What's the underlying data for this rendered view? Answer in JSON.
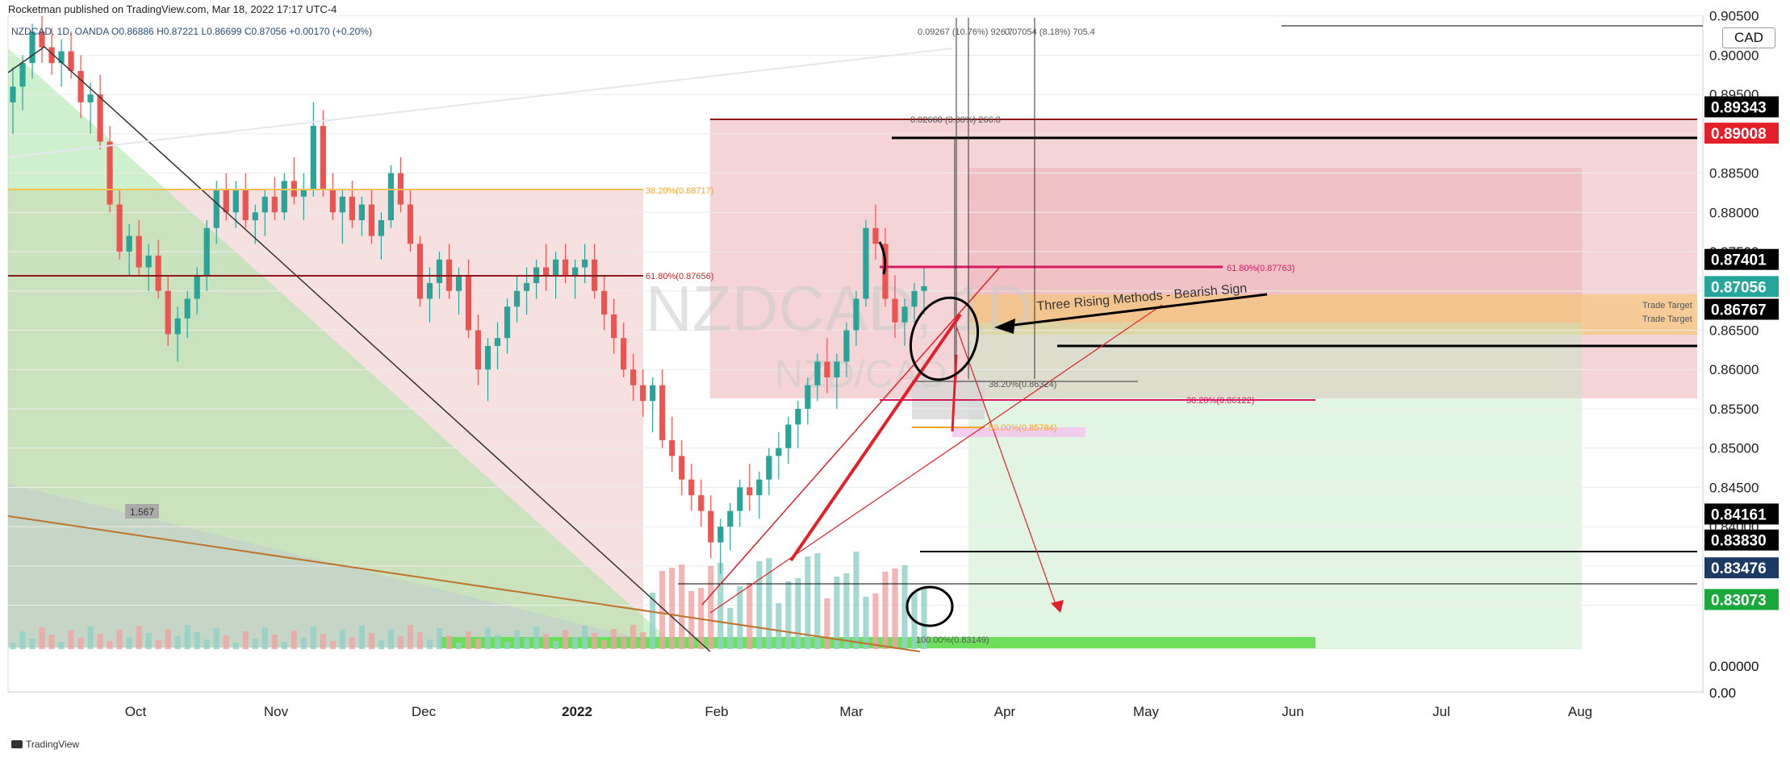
{
  "header": {
    "published": "Rocketman published on TradingView.com, Mar 18, 2022 17:17 UTC-4",
    "symbol_line": "NZDCAD, 1D, OANDA  O0.86886 H0.87221 L0.86699 C0.87056 +0.00170 (+0.20%)"
  },
  "currency_button": "CAD",
  "footer": {
    "brand": "TradingView"
  },
  "chart_data": {
    "type": "candlestick",
    "title": "",
    "watermark": [
      "NZDCAD, 1D",
      "NZD/CAD"
    ],
    "ylim": [
      0.82,
      0.906
    ],
    "y_ticks": [
      "0.90500",
      "0.90000",
      "0.89500",
      "0.89000",
      "0.88500",
      "0.88000",
      "0.87500",
      "0.87000",
      "0.86500",
      "0.86000",
      "0.85500",
      "0.85000",
      "0.84500",
      "0.84000",
      "0.83500",
      "0.83000"
    ],
    "x_ticks": [
      "Oct",
      "Nov",
      "Dec",
      "2022",
      "Feb",
      "Mar",
      "Apr",
      "May",
      "Jun",
      "Jul",
      "Aug"
    ],
    "price_labels": [
      {
        "value": "0.89343",
        "bg": "#000000",
        "fg": "#ffffff"
      },
      {
        "value": "0.89008",
        "bg": "#e3202a",
        "fg": "#ffffff"
      },
      {
        "value": "0.87401",
        "bg": "#000000",
        "fg": "#ffffff"
      },
      {
        "value": "0.87056",
        "bg": "#26a69a",
        "fg": "#ffffff"
      },
      {
        "value": "0.86767",
        "bg": "#000000",
        "fg": "#ffffff"
      },
      {
        "value": "0.84161",
        "bg": "#000000",
        "fg": "#ffffff"
      },
      {
        "value": "0.83830",
        "bg": "#000000",
        "fg": "#ffffff"
      },
      {
        "value": "0.83476",
        "bg": "#1c3a66",
        "fg": "#ffffff"
      },
      {
        "value": "0.83073",
        "bg": "#1aa83a",
        "fg": "#ffffff"
      }
    ],
    "volume_axis": [
      "0.00000",
      "0.00"
    ],
    "annotations": [
      {
        "text": "Three Rising Methods - Bearish Sign"
      },
      {
        "text": "Trade Target"
      },
      {
        "text": "Trade Target"
      },
      {
        "text": "38.20%(0.88717)"
      },
      {
        "text": "61.80%(0.87656)"
      },
      {
        "text": "61.80%(0.87763)"
      },
      {
        "text": "38.20%(0.86324)"
      },
      {
        "text": "38.20%(0.86122)"
      },
      {
        "text": "50.00%(0.85784)"
      },
      {
        "text": "0.02668 (3.08%) 266.8"
      },
      {
        "text": "0.09267 (10.76%) 926.7"
      },
      {
        "text": "0.07054 (8.18%) 705.4"
      },
      {
        "text": "1.567"
      },
      {
        "text": "100.00%(0.83149)"
      }
    ],
    "colors": {
      "up": "#26a69a",
      "down": "#ef5350",
      "fib_orange": "#f5a623",
      "fib_red": "#d81b60"
    },
    "candles": [
      [
        0.894,
        0.8985,
        0.89,
        0.896
      ],
      [
        0.896,
        0.9,
        0.893,
        0.899
      ],
      [
        0.899,
        0.904,
        0.897,
        0.903
      ],
      [
        0.903,
        0.905,
        0.899,
        0.901
      ],
      [
        0.901,
        0.9035,
        0.8975,
        0.899
      ],
      [
        0.899,
        0.902,
        0.896,
        0.9005
      ],
      [
        0.9005,
        0.903,
        0.897,
        0.898
      ],
      [
        0.898,
        0.9,
        0.892,
        0.894
      ],
      [
        0.894,
        0.8965,
        0.89,
        0.895
      ],
      [
        0.895,
        0.8975,
        0.888,
        0.889
      ],
      [
        0.889,
        0.891,
        0.88,
        0.881
      ],
      [
        0.881,
        0.883,
        0.874,
        0.875
      ],
      [
        0.875,
        0.8785,
        0.872,
        0.877
      ],
      [
        0.877,
        0.879,
        0.872,
        0.873
      ],
      [
        0.873,
        0.876,
        0.87,
        0.8745
      ],
      [
        0.8745,
        0.8765,
        0.869,
        0.87
      ],
      [
        0.87,
        0.872,
        0.863,
        0.8645
      ],
      [
        0.8645,
        0.868,
        0.861,
        0.8665
      ],
      [
        0.8665,
        0.87,
        0.864,
        0.869
      ],
      [
        0.869,
        0.873,
        0.867,
        0.872
      ],
      [
        0.872,
        0.879,
        0.87,
        0.878
      ],
      [
        0.878,
        0.884,
        0.876,
        0.883
      ],
      [
        0.883,
        0.885,
        0.879,
        0.88
      ],
      [
        0.88,
        0.884,
        0.878,
        0.883
      ],
      [
        0.883,
        0.885,
        0.878,
        0.879
      ],
      [
        0.879,
        0.881,
        0.876,
        0.88
      ],
      [
        0.88,
        0.883,
        0.877,
        0.882
      ],
      [
        0.882,
        0.8845,
        0.879,
        0.88
      ],
      [
        0.88,
        0.885,
        0.879,
        0.884
      ],
      [
        0.884,
        0.887,
        0.881,
        0.882
      ],
      [
        0.882,
        0.885,
        0.879,
        0.883
      ],
      [
        0.883,
        0.894,
        0.882,
        0.891
      ],
      [
        0.891,
        0.893,
        0.882,
        0.883
      ],
      [
        0.883,
        0.885,
        0.879,
        0.88
      ],
      [
        0.88,
        0.883,
        0.876,
        0.882
      ],
      [
        0.882,
        0.884,
        0.878,
        0.879
      ],
      [
        0.879,
        0.882,
        0.877,
        0.881
      ],
      [
        0.881,
        0.883,
        0.876,
        0.877
      ],
      [
        0.877,
        0.88,
        0.874,
        0.879
      ],
      [
        0.879,
        0.886,
        0.878,
        0.885
      ],
      [
        0.885,
        0.887,
        0.88,
        0.881
      ],
      [
        0.881,
        0.883,
        0.875,
        0.876
      ],
      [
        0.876,
        0.877,
        0.868,
        0.869
      ],
      [
        0.869,
        0.873,
        0.866,
        0.871
      ],
      [
        0.871,
        0.875,
        0.869,
        0.874
      ],
      [
        0.874,
        0.876,
        0.869,
        0.87
      ],
      [
        0.87,
        0.873,
        0.867,
        0.872
      ],
      [
        0.872,
        0.874,
        0.864,
        0.865
      ],
      [
        0.865,
        0.867,
        0.858,
        0.86
      ],
      [
        0.86,
        0.864,
        0.856,
        0.863
      ],
      [
        0.863,
        0.866,
        0.86,
        0.864
      ],
      [
        0.864,
        0.869,
        0.862,
        0.868
      ],
      [
        0.868,
        0.872,
        0.866,
        0.87
      ],
      [
        0.87,
        0.873,
        0.867,
        0.871
      ],
      [
        0.871,
        0.874,
        0.869,
        0.873
      ],
      [
        0.873,
        0.876,
        0.87,
        0.872
      ],
      [
        0.872,
        0.875,
        0.869,
        0.874
      ],
      [
        0.874,
        0.876,
        0.871,
        0.872
      ],
      [
        0.872,
        0.874,
        0.869,
        0.873
      ],
      [
        0.873,
        0.876,
        0.871,
        0.874
      ],
      [
        0.874,
        0.876,
        0.869,
        0.87
      ],
      [
        0.87,
        0.872,
        0.865,
        0.867
      ],
      [
        0.867,
        0.869,
        0.862,
        0.864
      ],
      [
        0.864,
        0.866,
        0.859,
        0.86
      ],
      [
        0.86,
        0.862,
        0.856,
        0.858
      ],
      [
        0.858,
        0.86,
        0.854,
        0.856
      ],
      [
        0.856,
        0.859,
        0.852,
        0.858
      ],
      [
        0.858,
        0.86,
        0.85,
        0.851
      ],
      [
        0.851,
        0.854,
        0.847,
        0.849
      ],
      [
        0.849,
        0.851,
        0.844,
        0.846
      ],
      [
        0.846,
        0.848,
        0.842,
        0.844
      ],
      [
        0.844,
        0.846,
        0.84,
        0.842
      ],
      [
        0.842,
        0.844,
        0.836,
        0.838
      ],
      [
        0.838,
        0.841,
        0.834,
        0.84
      ],
      [
        0.84,
        0.843,
        0.837,
        0.842
      ],
      [
        0.842,
        0.846,
        0.84,
        0.845
      ],
      [
        0.845,
        0.848,
        0.842,
        0.844
      ],
      [
        0.844,
        0.847,
        0.841,
        0.846
      ],
      [
        0.846,
        0.85,
        0.844,
        0.849
      ],
      [
        0.849,
        0.852,
        0.846,
        0.85
      ],
      [
        0.85,
        0.854,
        0.848,
        0.853
      ],
      [
        0.853,
        0.856,
        0.85,
        0.855
      ],
      [
        0.855,
        0.859,
        0.853,
        0.858
      ],
      [
        0.858,
        0.862,
        0.856,
        0.861
      ],
      [
        0.861,
        0.864,
        0.857,
        0.859
      ],
      [
        0.859,
        0.862,
        0.855,
        0.861
      ],
      [
        0.861,
        0.866,
        0.859,
        0.865
      ],
      [
        0.865,
        0.87,
        0.863,
        0.869
      ],
      [
        0.869,
        0.879,
        0.868,
        0.878
      ],
      [
        0.878,
        0.881,
        0.874,
        0.876
      ],
      [
        0.876,
        0.878,
        0.868,
        0.869
      ],
      [
        0.869,
        0.872,
        0.864,
        0.866
      ],
      [
        0.866,
        0.869,
        0.863,
        0.868
      ],
      [
        0.868,
        0.871,
        0.866,
        0.87
      ],
      [
        0.87,
        0.873,
        0.867,
        0.8706
      ]
    ]
  }
}
